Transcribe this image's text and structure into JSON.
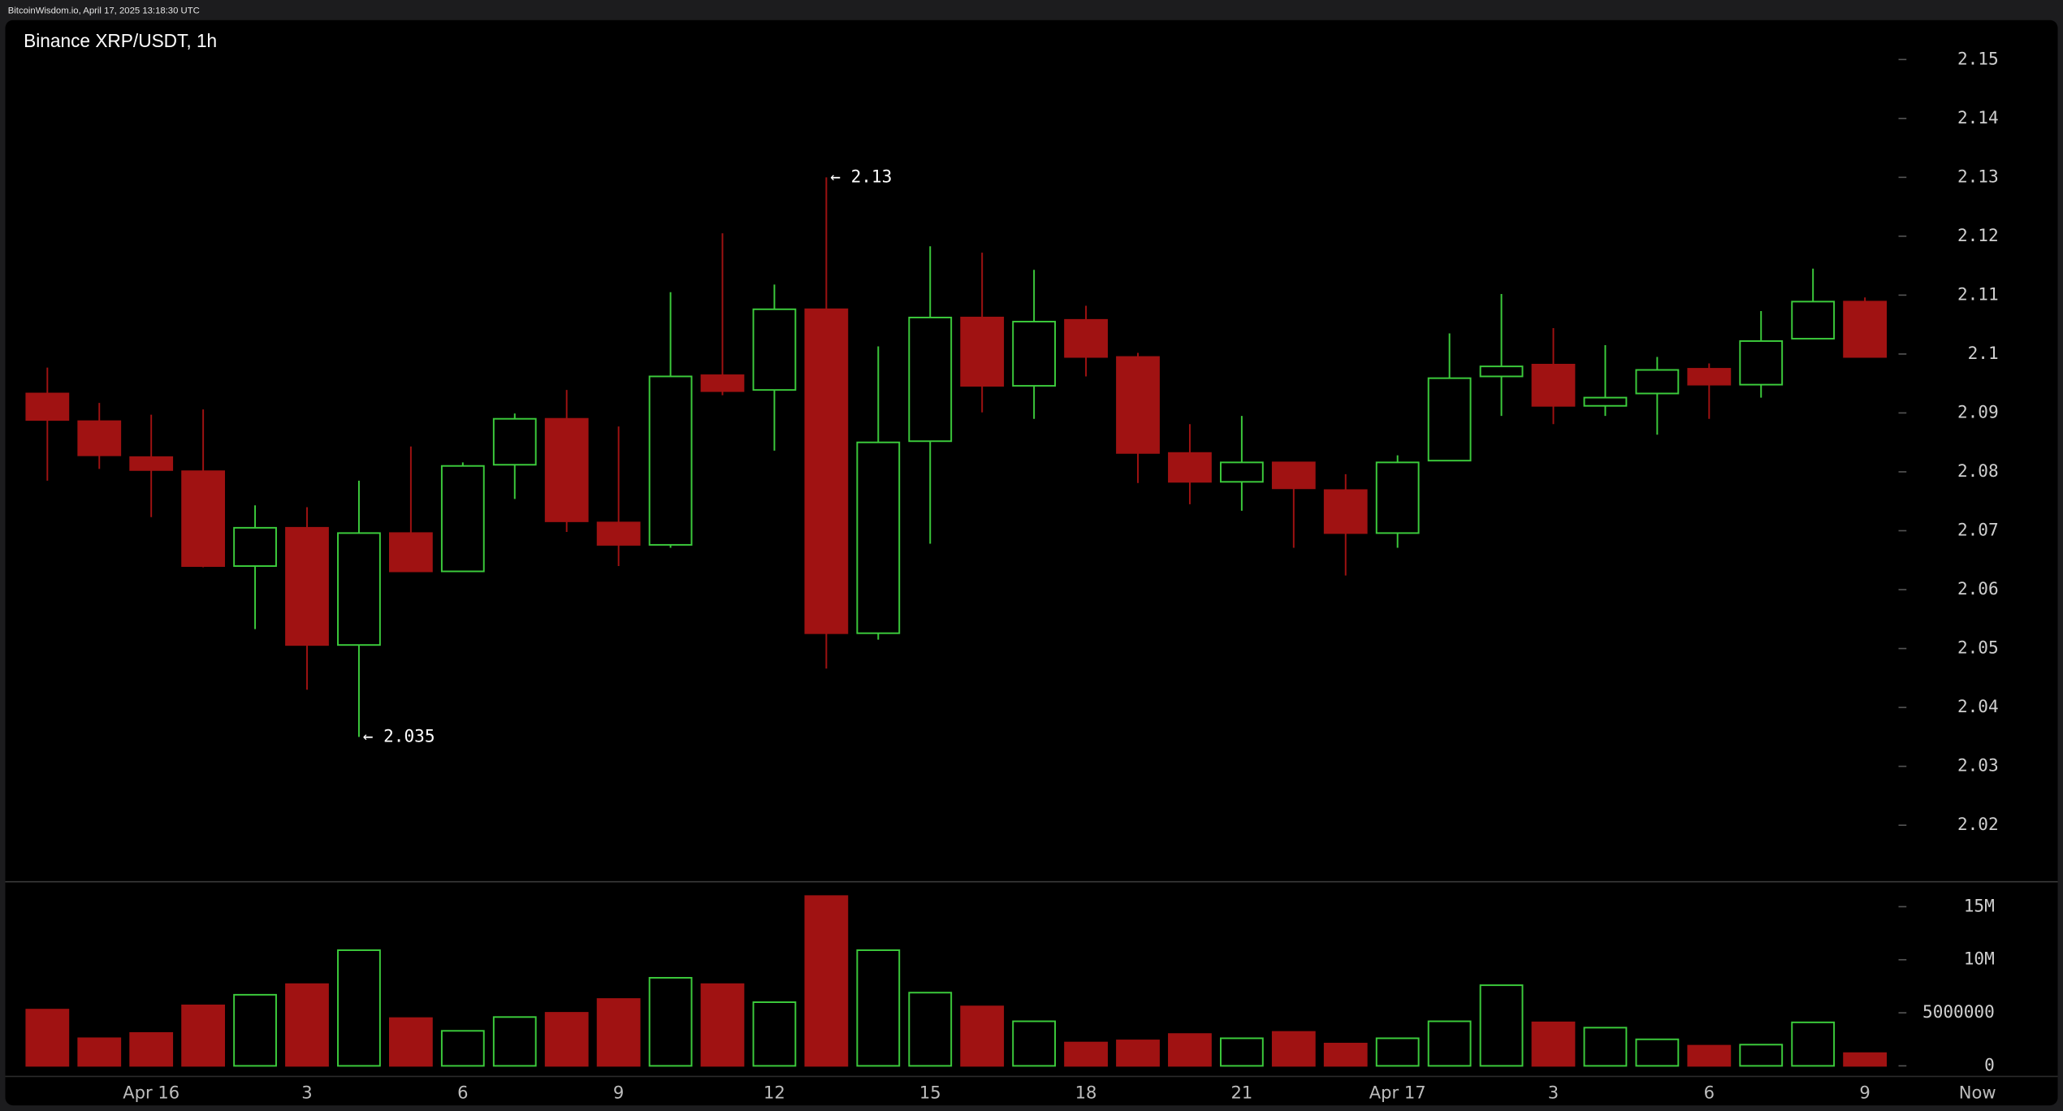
{
  "chart_data": {
    "type": "candlestick",
    "header": "BitcoinWisdom.io, April 17, 2025 13:18:30 UTC",
    "title": "Binance XRP/USDT, 1h",
    "categories": [
      null,
      null,
      "Apr 16",
      null,
      null,
      "3",
      null,
      null,
      "6",
      null,
      null,
      "9",
      null,
      null,
      "12",
      null,
      null,
      "15",
      null,
      null,
      "18",
      null,
      null,
      "21",
      null,
      null,
      "Apr 17",
      null,
      null,
      "3",
      null,
      null,
      "6",
      null,
      null,
      "9"
    ],
    "now_label": "Now",
    "open": [
      2.0933,
      2.0886,
      2.0825,
      2.0801,
      2.064,
      2.0705,
      2.0506,
      2.0696,
      2.0631,
      2.0812,
      2.089,
      2.0714,
      2.0676,
      2.0964,
      2.0939,
      2.1076,
      2.0526,
      2.0852,
      2.1062,
      2.0946,
      2.1058,
      2.0995,
      2.0832,
      2.0783,
      2.0816,
      2.0769,
      2.0696,
      2.0819,
      2.0962,
      2.0982,
      2.0912,
      2.0933,
      2.0975,
      2.0948,
      2.1026,
      2.1089
    ],
    "high": [
      2.0977,
      2.0917,
      2.0897,
      2.0906,
      2.0743,
      2.074,
      2.0785,
      2.0843,
      2.0816,
      2.0899,
      2.0939,
      2.0877,
      2.1105,
      2.1205,
      2.1118,
      2.13,
      2.1013,
      2.1183,
      2.1172,
      2.1143,
      2.1082,
      2.1002,
      2.0881,
      2.0895,
      2.0816,
      2.0796,
      2.0828,
      2.1035,
      2.1102,
      2.1044,
      2.1015,
      2.0995,
      2.0984,
      2.1073,
      2.1145,
      2.1096
    ],
    "low": [
      2.0785,
      2.0805,
      2.0723,
      2.0638,
      2.0533,
      2.043,
      2.035,
      2.0631,
      2.0631,
      2.0754,
      2.0698,
      2.064,
      2.0671,
      2.093,
      2.0836,
      2.0466,
      2.0515,
      2.0678,
      2.0901,
      2.089,
      2.0962,
      2.0781,
      2.0745,
      2.0734,
      2.0671,
      2.0624,
      2.0671,
      2.0819,
      2.0895,
      2.0881,
      2.0895,
      2.0863,
      2.089,
      2.0926,
      2.1026,
      2.0995
    ],
    "close": [
      2.0888,
      2.0828,
      2.0803,
      2.064,
      2.0705,
      2.0506,
      2.0696,
      2.0631,
      2.081,
      2.089,
      2.0716,
      2.0676,
      2.0962,
      2.0937,
      2.1076,
      2.0526,
      2.085,
      2.1062,
      2.0946,
      2.1055,
      2.0995,
      2.0832,
      2.0783,
      2.0816,
      2.0772,
      2.0696,
      2.0816,
      2.0959,
      2.0979,
      2.0912,
      2.0926,
      2.0973,
      2.0948,
      2.1022,
      2.1089,
      2.0995
    ],
    "volume": [
      5300000,
      2600000,
      3100000,
      5700000,
      6700000,
      7700000,
      10900000,
      4500000,
      3300000,
      4600000,
      5000000,
      6300000,
      8300000,
      7700000,
      6000000,
      16000000,
      10900000,
      6900000,
      5600000,
      4200000,
      2200000,
      2400000,
      3000000,
      2600000,
      3200000,
      2100000,
      2600000,
      4200000,
      7600000,
      4100000,
      3600000,
      2500000,
      1900000,
      2000000,
      4100000,
      1200000
    ],
    "up_color": "#3ccc3c",
    "down_color": "#a01212",
    "ylim": [
      2.0104,
      2.1567
    ],
    "yticks": [
      2.02,
      2.03,
      2.04,
      2.05,
      2.06,
      2.07,
      2.08,
      2.09,
      2.1,
      2.11,
      2.12,
      2.13,
      2.14,
      2.15
    ],
    "volume_ylim": [
      -1000000,
      17100000
    ],
    "volume_yticks": [
      0,
      5000000,
      {
        "value": 10000000,
        "label": "10M"
      },
      {
        "value": 15000000,
        "label": "15M"
      }
    ],
    "high_annotation": "← 2.13",
    "low_annotation": "← 2.035"
  }
}
